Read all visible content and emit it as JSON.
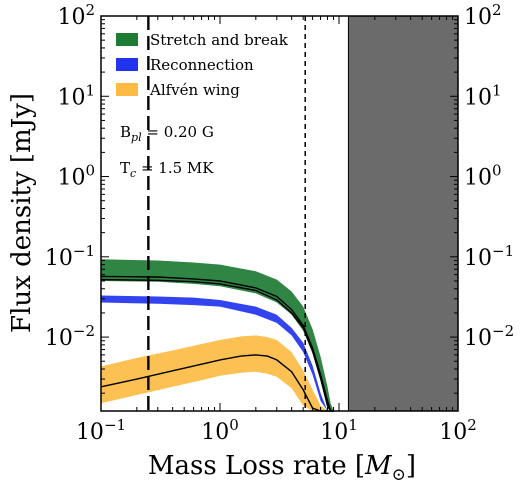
{
  "chart_data": {
    "type": "area",
    "xlabel": "Mass Loss rate [",
    "xlabel_symbol": "M",
    "xlabel_sub": "⊙",
    "xlabel_close": "]",
    "ylabel": "Flux density [mJy]",
    "xscale": "log",
    "yscale": "log",
    "xlim": [
      0.1,
      100
    ],
    "ylim": [
      0.0012,
      100
    ],
    "x_ticks": [
      {
        "value": 0.1,
        "base": "10",
        "exp": "−1"
      },
      {
        "value": 1,
        "base": "10",
        "exp": "0"
      },
      {
        "value": 10,
        "base": "10",
        "exp": "1"
      },
      {
        "value": 100,
        "base": "10",
        "exp": "2"
      }
    ],
    "y_ticks": [
      {
        "value": 0.01,
        "base": "10",
        "exp": "−2"
      },
      {
        "value": 0.1,
        "base": "10",
        "exp": "−1"
      },
      {
        "value": 1,
        "base": "10",
        "exp": "0"
      },
      {
        "value": 10,
        "base": "10",
        "exp": "1"
      },
      {
        "value": 100,
        "base": "10",
        "exp": "2"
      }
    ],
    "legend_position": "top-left",
    "series": [
      {
        "name": "Stretch and break",
        "color": "#1e7b34",
        "x": [
          0.1,
          0.3,
          0.6,
          1,
          2,
          3,
          4,
          5,
          6,
          7,
          8,
          8.5,
          9
        ],
        "upper": [
          0.093,
          0.09,
          0.085,
          0.08,
          0.066,
          0.052,
          0.037,
          0.024,
          0.0125,
          0.0057,
          0.0024,
          0.0015,
          0.0012
        ],
        "lower": [
          0.05,
          0.049,
          0.046,
          0.043,
          0.035,
          0.027,
          0.019,
          0.012,
          0.0062,
          0.0028,
          0.0013,
          0.0012,
          0.0012
        ],
        "curve_upper": [
          0.057,
          0.056,
          0.053,
          0.05,
          0.041,
          0.032,
          0.022,
          0.014,
          0.0073,
          0.0034,
          0.0016,
          0.0012,
          0.0012
        ],
        "curve_lower": [
          0.052,
          0.051,
          0.049,
          0.046,
          0.038,
          0.029,
          0.02,
          0.013,
          0.0067,
          0.0031,
          0.0014,
          0.0012,
          0.0012
        ]
      },
      {
        "name": "Reconnection",
        "color": "#2233ee",
        "x": [
          0.1,
          0.3,
          0.6,
          1,
          2,
          3,
          4,
          5,
          6,
          7,
          8,
          9
        ],
        "upper": [
          0.033,
          0.032,
          0.031,
          0.029,
          0.024,
          0.019,
          0.013,
          0.0085,
          0.0044,
          0.002,
          0.0012,
          0.0012
        ],
        "lower": [
          0.027,
          0.026,
          0.025,
          0.024,
          0.019,
          0.015,
          0.0105,
          0.0065,
          0.0034,
          0.0016,
          0.0012,
          0.0012
        ]
      },
      {
        "name": "Alfvén wing",
        "color": "#fdbb44",
        "x": [
          0.1,
          0.2,
          0.4,
          0.7,
          1,
          1.5,
          2,
          2.5,
          3,
          4,
          5,
          6,
          7,
          8,
          8.5
        ],
        "upper": [
          0.0043,
          0.0055,
          0.0068,
          0.0082,
          0.0092,
          0.0102,
          0.0105,
          0.01,
          0.0092,
          0.0065,
          0.0038,
          0.0022,
          0.0014,
          0.0012,
          0.0012
        ],
        "lower": [
          0.0015,
          0.0019,
          0.0024,
          0.0029,
          0.0033,
          0.0036,
          0.0037,
          0.0035,
          0.0032,
          0.0023,
          0.0014,
          0.0012,
          0.0012,
          0.0012,
          0.0012
        ],
        "curve": [
          0.0024,
          0.003,
          0.0038,
          0.0046,
          0.0052,
          0.0058,
          0.006,
          0.0058,
          0.0052,
          0.0037,
          0.0022,
          0.0013,
          0.0012,
          0.0012,
          0.0012
        ]
      }
    ],
    "vlines": [
      {
        "x": 0.25,
        "style": "long-dash"
      },
      {
        "x": 5.2,
        "style": "short-dash"
      }
    ],
    "shaded_region": {
      "x_from": 12,
      "x_to": 100,
      "color": "#6b6b6b"
    },
    "annotations": {
      "bpl": {
        "symbol": "B",
        "sub": "pl",
        "text": " = 0.20 G"
      },
      "tc": {
        "symbol": "T",
        "sub": "c",
        "text": " = 1.5 MK"
      }
    },
    "grid": false
  }
}
